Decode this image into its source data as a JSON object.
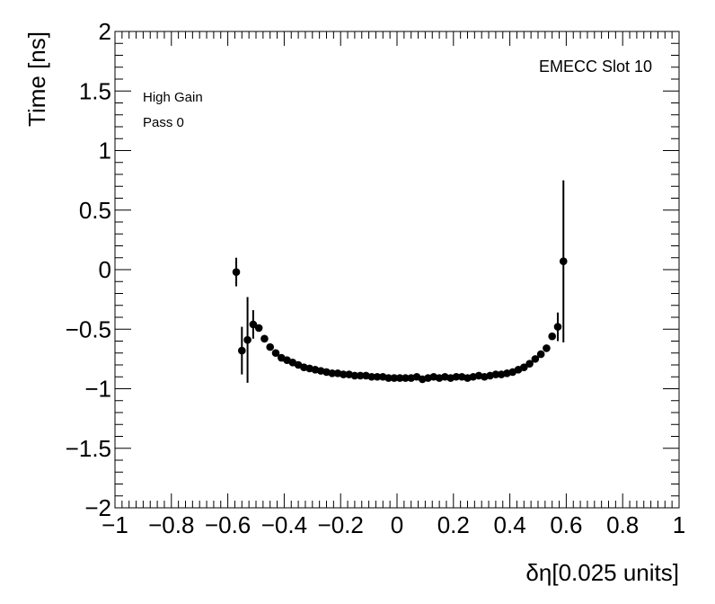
{
  "chart_data": {
    "type": "scatter",
    "title": "",
    "xlabel": "δη[0.025 units]",
    "ylabel": "Time [ns]",
    "xlim": [
      -1,
      1
    ],
    "ylim": [
      -2,
      2
    ],
    "x_ticks": [
      "−1",
      "−0.8",
      "−0.6",
      "−0.4",
      "−0.2",
      "0",
      "0.2",
      "0.4",
      "0.6",
      "0.8",
      "1"
    ],
    "y_ticks": [
      "−2",
      "−1.5",
      "−1",
      "−0.5",
      "0",
      "0.5",
      "1",
      "1.5",
      "2"
    ],
    "annotations": {
      "gain": "High Gain",
      "pass": "Pass 0",
      "slot": "EMECC Slot 10"
    },
    "grid": false,
    "marker_color": "#000000",
    "series": [
      {
        "points": [
          {
            "x": -0.57,
            "y": -0.02,
            "err": 0.12
          },
          {
            "x": -0.55,
            "y": -0.68,
            "err": 0.2
          },
          {
            "x": -0.53,
            "y": -0.59,
            "err": 0.36
          },
          {
            "x": -0.51,
            "y": -0.46,
            "err": 0.12
          },
          {
            "x": -0.49,
            "y": -0.49,
            "err": 0.02
          },
          {
            "x": -0.47,
            "y": -0.58
          },
          {
            "x": -0.45,
            "y": -0.65
          },
          {
            "x": -0.43,
            "y": -0.7
          },
          {
            "x": -0.41,
            "y": -0.74
          },
          {
            "x": -0.39,
            "y": -0.76
          },
          {
            "x": -0.37,
            "y": -0.78
          },
          {
            "x": -0.35,
            "y": -0.8
          },
          {
            "x": -0.33,
            "y": -0.82
          },
          {
            "x": -0.31,
            "y": -0.83
          },
          {
            "x": -0.29,
            "y": -0.84
          },
          {
            "x": -0.27,
            "y": -0.85
          },
          {
            "x": -0.25,
            "y": -0.86
          },
          {
            "x": -0.23,
            "y": -0.87
          },
          {
            "x": -0.21,
            "y": -0.87
          },
          {
            "x": -0.19,
            "y": -0.88
          },
          {
            "x": -0.17,
            "y": -0.88
          },
          {
            "x": -0.15,
            "y": -0.89
          },
          {
            "x": -0.13,
            "y": -0.89
          },
          {
            "x": -0.11,
            "y": -0.89
          },
          {
            "x": -0.09,
            "y": -0.9
          },
          {
            "x": -0.07,
            "y": -0.9
          },
          {
            "x": -0.05,
            "y": -0.9
          },
          {
            "x": -0.03,
            "y": -0.91
          },
          {
            "x": -0.01,
            "y": -0.91
          },
          {
            "x": 0.01,
            "y": -0.91
          },
          {
            "x": 0.03,
            "y": -0.91
          },
          {
            "x": 0.05,
            "y": -0.91
          },
          {
            "x": 0.07,
            "y": -0.9
          },
          {
            "x": 0.09,
            "y": -0.92
          },
          {
            "x": 0.11,
            "y": -0.91
          },
          {
            "x": 0.13,
            "y": -0.9
          },
          {
            "x": 0.15,
            "y": -0.91
          },
          {
            "x": 0.17,
            "y": -0.9
          },
          {
            "x": 0.19,
            "y": -0.91
          },
          {
            "x": 0.21,
            "y": -0.9
          },
          {
            "x": 0.23,
            "y": -0.9
          },
          {
            "x": 0.25,
            "y": -0.91
          },
          {
            "x": 0.27,
            "y": -0.9
          },
          {
            "x": 0.29,
            "y": -0.89
          },
          {
            "x": 0.31,
            "y": -0.9
          },
          {
            "x": 0.33,
            "y": -0.89
          },
          {
            "x": 0.35,
            "y": -0.88
          },
          {
            "x": 0.37,
            "y": -0.88
          },
          {
            "x": 0.39,
            "y": -0.87
          },
          {
            "x": 0.41,
            "y": -0.86
          },
          {
            "x": 0.43,
            "y": -0.84
          },
          {
            "x": 0.45,
            "y": -0.82
          },
          {
            "x": 0.47,
            "y": -0.79
          },
          {
            "x": 0.49,
            "y": -0.75
          },
          {
            "x": 0.51,
            "y": -0.71
          },
          {
            "x": 0.53,
            "y": -0.66
          },
          {
            "x": 0.55,
            "y": -0.56
          },
          {
            "x": 0.57,
            "y": -0.48,
            "err": 0.12
          },
          {
            "x": 0.59,
            "y": 0.07,
            "err": 0.68
          }
        ]
      }
    ]
  }
}
